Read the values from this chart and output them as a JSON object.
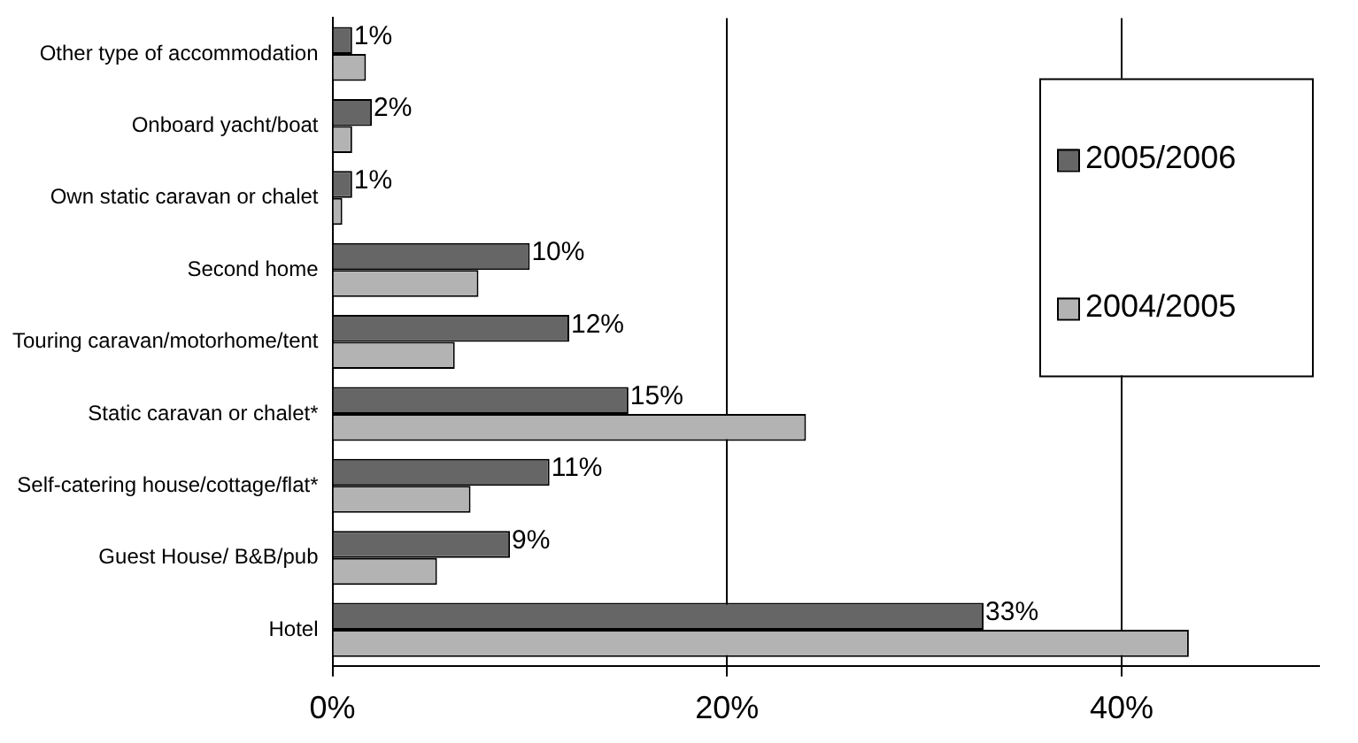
{
  "chart_data": {
    "type": "bar",
    "orientation": "horizontal",
    "categories": [
      "Other type of accommodation",
      "Onboard yacht/boat",
      "Own static caravan or chalet",
      "Second home",
      "Touring caravan/motorhome/tent",
      "Static caravan or chalet*",
      "Self-catering house/cottage/flat*",
      "Guest House/ B&B/pub",
      "Hotel"
    ],
    "series": [
      {
        "name": "2005/2006",
        "color": "#666666",
        "values": [
          1,
          2,
          1,
          10,
          12,
          15,
          11,
          9,
          33
        ],
        "value_labels": [
          "1%",
          "2%",
          "1%",
          "10%",
          "12%",
          "15%",
          "11%",
          "9%",
          "33%"
        ]
      },
      {
        "name": "2004/2005",
        "color": "#b3b3b3",
        "values": [
          1.7,
          1,
          0.5,
          7.4,
          6.2,
          24,
          7,
          5.3,
          43.4
        ]
      }
    ],
    "xlim": [
      0,
      50
    ],
    "xticks": [
      {
        "value": 0,
        "label": "0%"
      },
      {
        "value": 20,
        "label": "20%"
      },
      {
        "value": 40,
        "label": "40%"
      }
    ],
    "grid": "x",
    "legend": "top right"
  }
}
